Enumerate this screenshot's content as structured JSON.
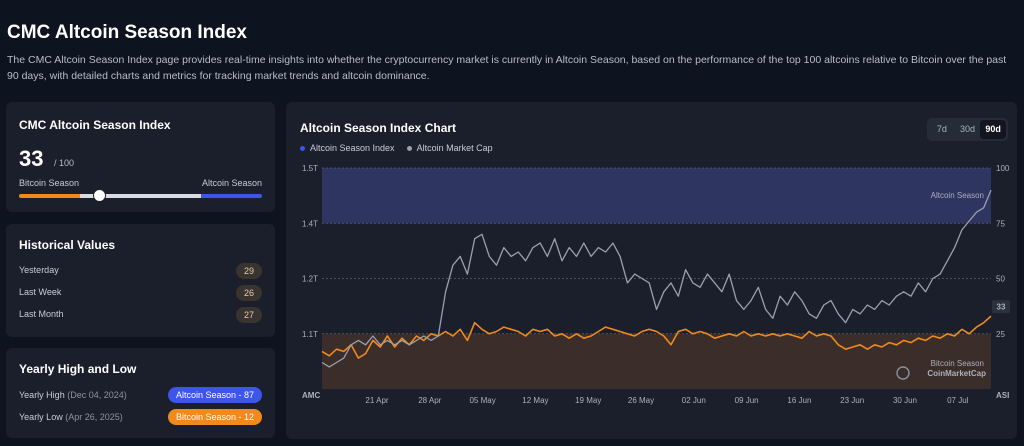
{
  "page": {
    "title": "CMC Altcoin Season Index",
    "description": "The CMC Altcoin Season Index page provides real-time insights into whether the cryptocurrency market is currently in Altcoin Season, based on the performance of the top 100 altcoins relative to Bitcoin over the past 90 days, with detailed charts and metrics for tracking market trends and altcoin dominance."
  },
  "index_card": {
    "title": "CMC Altcoin Season Index",
    "value": "33",
    "max": "/ 100",
    "value_fraction": 0.33,
    "left_label": "Bitcoin Season",
    "right_label": "Altcoin Season"
  },
  "historical": {
    "title": "Historical Values",
    "rows": [
      {
        "label": "Yesterday",
        "value": "29"
      },
      {
        "label": "Last Week",
        "value": "26"
      },
      {
        "label": "Last Month",
        "value": "27"
      }
    ]
  },
  "yearly": {
    "title": "Yearly High and Low",
    "high": {
      "label": "Yearly High",
      "date": "(Dec 04, 2024)",
      "badge": "Altcoin Season - 87"
    },
    "low": {
      "label": "Yearly Low",
      "date": "(Apr 26, 2025)",
      "badge": "Bitcoin Season - 12"
    }
  },
  "colors": {
    "altcoin": "#3d55e8",
    "bitcoin": "#f08a1c",
    "market_cap": "#9aa0ad"
  },
  "chart": {
    "title": "Altcoin Season Index Chart",
    "ranges": [
      "7d",
      "30d",
      "90d"
    ],
    "active_range": "90d",
    "legend": [
      {
        "name": "Altcoin Season Index",
        "color": "#3d55e8"
      },
      {
        "name": "Altcoin Market Cap",
        "color": "#9aa0ad"
      }
    ],
    "zone_top_label": "Altcoin Season",
    "zone_bottom_label": "Bitcoin Season",
    "watermark": "CoinMarketCap",
    "left_axis_label": "AMC",
    "right_axis_label": "ASI",
    "current_value_label": "33"
  },
  "chart_data": {
    "type": "line",
    "x_ticks": [
      "21 Apr",
      "28 Apr",
      "05 May",
      "12 May",
      "19 May",
      "26 May",
      "02 Jun",
      "09 Jun",
      "16 Jun",
      "23 Jun",
      "30 Jun",
      "07 Jul"
    ],
    "left_axis": {
      "ticks": [
        "1.5T",
        "1.4T",
        "1.2T",
        "1.1T"
      ],
      "range": [
        1.0,
        1.5
      ]
    },
    "right_axis": {
      "ticks": [
        "100",
        "75",
        "50",
        "25"
      ],
      "range": [
        0,
        100
      ]
    },
    "series": [
      {
        "name": "Altcoin Season Index",
        "axis": "right",
        "values": [
          17,
          15,
          18,
          17,
          20,
          14,
          16,
          22,
          19,
          24,
          19,
          23,
          20,
          24,
          22,
          25,
          24,
          26,
          24,
          27,
          22,
          30,
          27,
          25,
          26,
          28,
          27,
          26,
          24,
          27,
          26,
          27,
          24,
          25,
          23,
          25,
          23,
          24,
          26,
          28,
          27,
          26,
          25,
          24,
          26,
          27,
          26,
          24,
          20,
          26,
          27,
          25,
          26,
          25,
          23,
          24,
          25,
          24,
          26,
          24,
          25,
          24,
          25,
          24,
          25,
          24,
          23,
          26,
          24,
          25,
          24,
          20,
          18,
          19,
          20,
          18,
          20,
          19,
          21,
          20,
          22,
          21,
          23,
          22,
          24,
          23,
          25,
          24,
          27,
          25,
          28,
          30,
          33
        ]
      },
      {
        "name": "Altcoin Market Cap",
        "axis": "left",
        "values": [
          1.06,
          1.05,
          1.06,
          1.07,
          1.1,
          1.11,
          1.1,
          1.12,
          1.1,
          1.11,
          1.1,
          1.11,
          1.1,
          1.11,
          1.12,
          1.11,
          1.12,
          1.22,
          1.28,
          1.3,
          1.26,
          1.34,
          1.35,
          1.3,
          1.28,
          1.32,
          1.3,
          1.31,
          1.29,
          1.32,
          1.33,
          1.3,
          1.34,
          1.29,
          1.32,
          1.3,
          1.33,
          1.3,
          1.32,
          1.31,
          1.33,
          1.3,
          1.24,
          1.26,
          1.25,
          1.24,
          1.18,
          1.22,
          1.24,
          1.21,
          1.27,
          1.24,
          1.23,
          1.26,
          1.24,
          1.22,
          1.26,
          1.2,
          1.18,
          1.2,
          1.23,
          1.18,
          1.16,
          1.21,
          1.19,
          1.22,
          1.2,
          1.17,
          1.16,
          1.19,
          1.2,
          1.17,
          1.15,
          1.18,
          1.17,
          1.19,
          1.18,
          1.2,
          1.19,
          1.21,
          1.22,
          1.21,
          1.24,
          1.22,
          1.25,
          1.26,
          1.29,
          1.32,
          1.36,
          1.38,
          1.4,
          1.41,
          1.45
        ]
      }
    ]
  }
}
